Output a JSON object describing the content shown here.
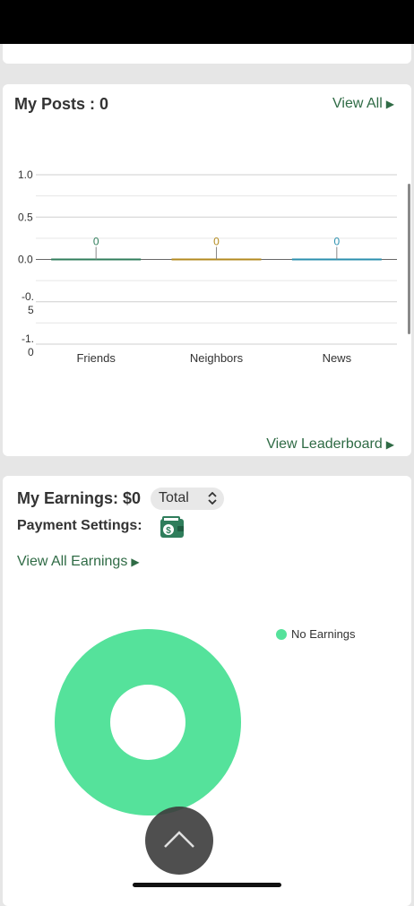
{
  "posts": {
    "title": "My Posts : 0",
    "view_all": "View All",
    "view_leaderboard": "View Leaderboard"
  },
  "chart_data": {
    "type": "bar",
    "categories": [
      "Friends",
      "Neighbors",
      "News"
    ],
    "values": [
      0,
      0,
      0
    ],
    "data_labels": [
      "0",
      "0",
      "0"
    ],
    "y_ticks": [
      "1.0",
      "0.5",
      "0.0",
      "-0.5",
      "-1.0"
    ],
    "ylim": [
      -1,
      1
    ],
    "colors": [
      "#2f7d5b",
      "#b38a1e",
      "#2a8fae"
    ],
    "grid": true
  },
  "earnings": {
    "title": "My Earnings: $0",
    "period_select": "Total",
    "payment_label": "Payment Settings:",
    "view_all": "View All Earnings",
    "legend_label": "No Earnings",
    "donut_color": "#55e29b"
  },
  "icons": {
    "wallet": "wallet-icon",
    "scroll_up": "chevron-up-icon",
    "arrow": "triangle-right-icon"
  }
}
